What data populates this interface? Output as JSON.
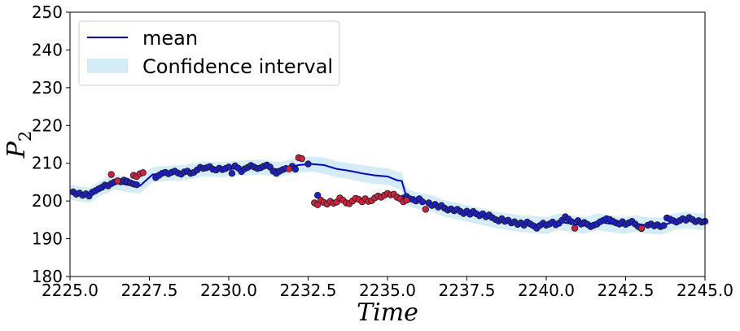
{
  "chart_data": {
    "type": "scatter",
    "title": "",
    "xlabel": "Time",
    "ylabel_base": "P",
    "ylabel_sub": "2",
    "xlim": [
      2225.0,
      2245.0
    ],
    "ylim": [
      180,
      250
    ],
    "xticks": [
      2225.0,
      2227.5,
      2230.0,
      2232.5,
      2235.0,
      2237.5,
      2240.0,
      2242.5,
      2245.0
    ],
    "xtick_labels": [
      "2225.0",
      "2227.5",
      "2230.0",
      "2232.5",
      "2235.0",
      "2237.5",
      "2240.0",
      "2242.5",
      "2245.0"
    ],
    "yticks": [
      180,
      190,
      200,
      210,
      220,
      230,
      240,
      250
    ],
    "ytick_labels": [
      "180",
      "190",
      "200",
      "210",
      "220",
      "230",
      "240",
      "250"
    ],
    "grid": false,
    "legend_position": "top-left",
    "legend": [
      {
        "label": "mean",
        "kind": "line",
        "color": "#0000dd"
      },
      {
        "label": "Confidence interval",
        "kind": "band",
        "color": "#d4ecf5"
      }
    ],
    "colors": {
      "mean": "#0000dd",
      "band": "#d4ecf5",
      "normal_fill": "#1f1fc8",
      "anomaly_fill": "#d51f3f",
      "marker_edge": "#1a1a1a"
    },
    "mean_band": {
      "x": [
        2225.0,
        2225.6,
        2226.0,
        2226.4,
        2226.8,
        2227.2,
        2227.6,
        2228.0,
        2228.6,
        2229.2,
        2229.8,
        2230.4,
        2231.0,
        2231.6,
        2232.2,
        2232.6,
        2233.0,
        2233.4,
        2233.8,
        2234.2,
        2234.6,
        2235.0,
        2235.3,
        2235.45,
        2235.6,
        2236.0,
        2236.4,
        2236.8,
        2237.2,
        2237.6,
        2238.0,
        2238.4,
        2238.8,
        2239.2,
        2239.6,
        2240.0,
        2240.4,
        2240.8,
        2241.2,
        2241.6,
        2242.0,
        2242.4,
        2242.8,
        2243.2,
        2243.6,
        2244.0,
        2244.4,
        2244.8,
        2245.0
      ],
      "mean": [
        202.3,
        201.5,
        203.5,
        205.0,
        204.3,
        204.0,
        207.0,
        207.3,
        207.5,
        208.5,
        208.3,
        208.7,
        209.0,
        208.3,
        209.5,
        209.8,
        209.5,
        208.5,
        208.0,
        207.3,
        206.8,
        206.5,
        205.5,
        205.3,
        201.0,
        200.0,
        199.3,
        198.0,
        197.3,
        196.5,
        195.8,
        195.0,
        194.5,
        194.0,
        193.8,
        193.5,
        194.5,
        194.0,
        193.5,
        194.5,
        194.0,
        193.5,
        194.0,
        193.5,
        193.3,
        194.5,
        195.0,
        194.5,
        194.5
      ],
      "upper": [
        204.3,
        203.5,
        205.5,
        207.0,
        206.3,
        206.5,
        209.0,
        209.3,
        209.5,
        210.5,
        210.3,
        210.7,
        211.0,
        210.3,
        211.5,
        211.8,
        211.5,
        210.5,
        210.0,
        209.5,
        209.0,
        208.7,
        207.8,
        207.6,
        203.2,
        202.2,
        201.5,
        200.2,
        199.5,
        198.7,
        198.0,
        197.2,
        196.7,
        196.2,
        196.0,
        195.7,
        196.7,
        196.2,
        195.7,
        196.7,
        196.2,
        195.7,
        196.2,
        195.7,
        195.5,
        196.7,
        197.2,
        196.7,
        196.7
      ],
      "lower": [
        200.3,
        199.5,
        201.5,
        203.0,
        202.3,
        202.0,
        205.0,
        205.3,
        205.5,
        206.5,
        206.3,
        206.7,
        207.0,
        206.3,
        207.5,
        207.8,
        207.2,
        206.3,
        205.8,
        205.0,
        204.5,
        204.2,
        203.3,
        203.0,
        198.8,
        197.8,
        197.1,
        195.8,
        195.1,
        194.3,
        193.6,
        192.8,
        192.3,
        191.8,
        191.6,
        191.3,
        192.3,
        191.8,
        191.3,
        192.3,
        191.8,
        191.3,
        191.8,
        191.3,
        191.1,
        192.3,
        192.8,
        192.3,
        192.3
      ]
    },
    "normal_points": [
      [
        2225.1,
        202.4
      ],
      [
        2225.2,
        201.8
      ],
      [
        2225.3,
        202.1
      ],
      [
        2225.4,
        201.5
      ],
      [
        2225.5,
        201.9
      ],
      [
        2225.6,
        201.3
      ],
      [
        2225.7,
        202.3
      ],
      [
        2225.8,
        202.7
      ],
      [
        2225.9,
        203.2
      ],
      [
        2226.0,
        203.6
      ],
      [
        2226.1,
        204.2
      ],
      [
        2226.2,
        204.0
      ],
      [
        2226.3,
        204.6
      ],
      [
        2226.4,
        205.0
      ],
      [
        2226.5,
        205.3
      ],
      [
        2226.6,
        205.1
      ],
      [
        2226.7,
        205.5
      ],
      [
        2226.8,
        205.2
      ],
      [
        2226.9,
        204.8
      ],
      [
        2227.0,
        204.5
      ],
      [
        2227.1,
        204.3
      ],
      [
        2227.7,
        206.2
      ],
      [
        2227.8,
        206.8
      ],
      [
        2227.9,
        207.3
      ],
      [
        2228.0,
        207.6
      ],
      [
        2228.1,
        207.2
      ],
      [
        2228.2,
        207.6
      ],
      [
        2228.3,
        207.9
      ],
      [
        2228.4,
        207.4
      ],
      [
        2228.5,
        207.1
      ],
      [
        2228.6,
        207.7
      ],
      [
        2228.7,
        207.9
      ],
      [
        2228.8,
        207.3
      ],
      [
        2228.9,
        207.6
      ],
      [
        2229.0,
        208.2
      ],
      [
        2229.1,
        208.9
      ],
      [
        2229.2,
        208.6
      ],
      [
        2229.3,
        208.8
      ],
      [
        2229.4,
        209.1
      ],
      [
        2229.5,
        208.4
      ],
      [
        2229.6,
        208.2
      ],
      [
        2229.7,
        208.7
      ],
      [
        2229.8,
        208.3
      ],
      [
        2229.9,
        208.6
      ],
      [
        2230.0,
        209.0
      ],
      [
        2230.1,
        207.3
      ],
      [
        2230.2,
        209.3
      ],
      [
        2230.3,
        208.7
      ],
      [
        2230.4,
        207.8
      ],
      [
        2230.5,
        208.5
      ],
      [
        2230.6,
        208.9
      ],
      [
        2230.7,
        209.4
      ],
      [
        2230.8,
        209.0
      ],
      [
        2230.9,
        208.6
      ],
      [
        2231.0,
        208.8
      ],
      [
        2231.1,
        209.2
      ],
      [
        2231.2,
        209.5
      ],
      [
        2231.3,
        209.0
      ],
      [
        2231.4,
        207.9
      ],
      [
        2231.5,
        207.3
      ],
      [
        2231.6,
        207.9
      ],
      [
        2231.7,
        208.3
      ],
      [
        2231.8,
        208.6
      ],
      [
        2232.0,
        209.2
      ],
      [
        2232.1,
        208.4
      ],
      [
        2232.5,
        209.8
      ],
      [
        2232.8,
        201.5
      ],
      [
        2235.3,
        201.0
      ],
      [
        2235.5,
        200.8
      ],
      [
        2235.6,
        201.2
      ],
      [
        2235.7,
        200.6
      ],
      [
        2235.8,
        200.4
      ],
      [
        2235.9,
        200.0
      ],
      [
        2236.0,
        200.6
      ],
      [
        2236.1,
        199.8
      ],
      [
        2236.3,
        199.5
      ],
      [
        2236.4,
        198.8
      ],
      [
        2236.5,
        199.1
      ],
      [
        2236.6,
        198.4
      ],
      [
        2236.7,
        198.8
      ],
      [
        2236.8,
        198.1
      ],
      [
        2236.9,
        197.6
      ],
      [
        2237.0,
        197.9
      ],
      [
        2237.1,
        197.4
      ],
      [
        2237.2,
        197.8
      ],
      [
        2237.3,
        197.2
      ],
      [
        2237.4,
        196.7
      ],
      [
        2237.5,
        197.3
      ],
      [
        2237.6,
        196.5
      ],
      [
        2237.7,
        197.2
      ],
      [
        2237.8,
        196.6
      ],
      [
        2237.9,
        196.1
      ],
      [
        2238.0,
        196.6
      ],
      [
        2238.1,
        195.8
      ],
      [
        2238.2,
        196.3
      ],
      [
        2238.3,
        195.6
      ],
      [
        2238.4,
        195.1
      ],
      [
        2238.5,
        194.7
      ],
      [
        2238.6,
        195.3
      ],
      [
        2238.7,
        194.6
      ],
      [
        2238.8,
        194.9
      ],
      [
        2238.9,
        194.2
      ],
      [
        2239.0,
        194.5
      ],
      [
        2239.1,
        193.8
      ],
      [
        2239.2,
        194.2
      ],
      [
        2239.3,
        193.6
      ],
      [
        2239.4,
        194.4
      ],
      [
        2239.5,
        193.9
      ],
      [
        2239.6,
        193.4
      ],
      [
        2239.7,
        192.8
      ],
      [
        2239.8,
        193.5
      ],
      [
        2239.9,
        194.1
      ],
      [
        2240.0,
        193.6
      ],
      [
        2240.1,
        193.9
      ],
      [
        2240.2,
        194.4
      ],
      [
        2240.3,
        193.7
      ],
      [
        2240.4,
        194.1
      ],
      [
        2240.5,
        194.9
      ],
      [
        2240.6,
        195.8
      ],
      [
        2240.7,
        195.2
      ],
      [
        2240.8,
        194.5
      ],
      [
        2241.0,
        194.8
      ],
      [
        2241.1,
        193.9
      ],
      [
        2241.2,
        194.3
      ],
      [
        2241.3,
        193.8
      ],
      [
        2241.4,
        193.2
      ],
      [
        2241.5,
        193.6
      ],
      [
        2241.6,
        193.9
      ],
      [
        2241.7,
        194.5
      ],
      [
        2241.8,
        194.9
      ],
      [
        2241.9,
        195.3
      ],
      [
        2242.0,
        195.1
      ],
      [
        2242.1,
        194.6
      ],
      [
        2242.2,
        194.2
      ],
      [
        2242.3,
        193.9
      ],
      [
        2242.4,
        194.5
      ],
      [
        2242.5,
        193.8
      ],
      [
        2242.6,
        194.2
      ],
      [
        2242.7,
        194.6
      ],
      [
        2242.8,
        193.9
      ],
      [
        2242.9,
        193.2
      ],
      [
        2243.0,
        192.7
      ],
      [
        2243.2,
        193.6
      ],
      [
        2243.3,
        193.9
      ],
      [
        2243.4,
        193.4
      ],
      [
        2243.5,
        193.7
      ],
      [
        2243.6,
        193.2
      ],
      [
        2243.7,
        193.5
      ],
      [
        2243.8,
        195.5
      ],
      [
        2243.9,
        195.2
      ],
      [
        2244.0,
        194.8
      ],
      [
        2244.1,
        194.4
      ],
      [
        2244.2,
        194.8
      ],
      [
        2244.3,
        195.3
      ],
      [
        2244.4,
        194.9
      ],
      [
        2244.5,
        195.6
      ],
      [
        2244.6,
        195.1
      ],
      [
        2244.7,
        194.5
      ],
      [
        2244.8,
        194.8
      ],
      [
        2244.9,
        194.4
      ],
      [
        2245.0,
        194.6
      ]
    ],
    "anomaly_points": [
      [
        2226.3,
        207.0
      ],
      [
        2226.5,
        205.3
      ],
      [
        2227.0,
        206.8
      ],
      [
        2227.1,
        206.5
      ],
      [
        2227.2,
        207.2
      ],
      [
        2227.3,
        207.5
      ],
      [
        2231.9,
        208.5
      ],
      [
        2232.2,
        211.5
      ],
      [
        2232.3,
        211.2
      ],
      [
        2232.7,
        199.5
      ],
      [
        2232.8,
        199.0
      ],
      [
        2232.9,
        200.2
      ],
      [
        2233.0,
        199.6
      ],
      [
        2233.1,
        199.2
      ],
      [
        2233.2,
        199.9
      ],
      [
        2233.3,
        199.4
      ],
      [
        2233.4,
        199.7
      ],
      [
        2233.5,
        200.8
      ],
      [
        2233.6,
        200.2
      ],
      [
        2233.7,
        199.5
      ],
      [
        2233.8,
        199.3
      ],
      [
        2233.9,
        200.0
      ],
      [
        2234.0,
        200.7
      ],
      [
        2234.1,
        200.4
      ],
      [
        2234.2,
        199.8
      ],
      [
        2234.3,
        200.6
      ],
      [
        2234.4,
        199.9
      ],
      [
        2234.5,
        200.1
      ],
      [
        2234.6,
        200.8
      ],
      [
        2234.7,
        201.3
      ],
      [
        2234.8,
        201.0
      ],
      [
        2234.9,
        201.5
      ],
      [
        2235.0,
        202.0
      ],
      [
        2235.1,
        201.6
      ],
      [
        2235.2,
        201.8
      ],
      [
        2235.3,
        201.0
      ],
      [
        2235.4,
        200.6
      ],
      [
        2235.5,
        199.8
      ],
      [
        2235.6,
        200.2
      ],
      [
        2236.2,
        197.8
      ],
      [
        2240.9,
        192.8
      ],
      [
        2243.0,
        192.8
      ]
    ]
  }
}
